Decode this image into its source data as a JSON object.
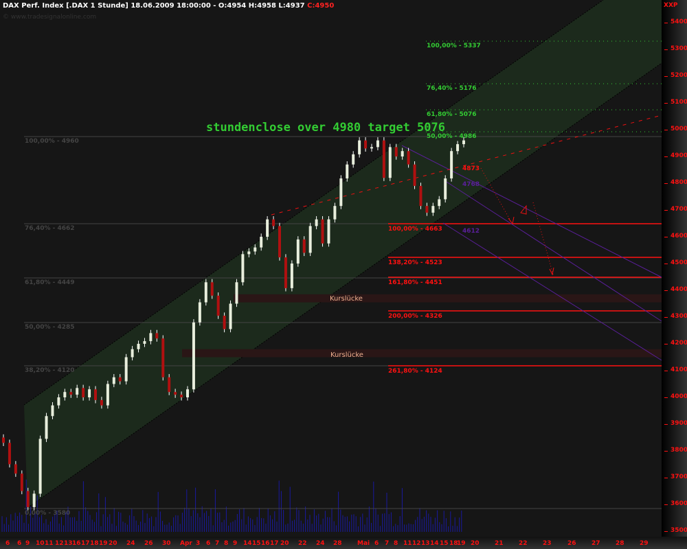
{
  "header": {
    "title": "DAX Perf. Index [.DAX  1 Stunde] 18.06.2009 18:00:00 - O:4954 H:4958 L:4937",
    "close": "C:4950",
    "watermark": "© www.tradesignalonline.com"
  },
  "annotation": "stundenclose over 4980  target 5076",
  "gap_label": "Kurslücke",
  "colors": {
    "background": "#161616",
    "channel": "#1c2a1c",
    "bull": "#e8eedc",
    "bear": "#b01010",
    "fib_up": "#33cc33",
    "fib_down": "#ff1111",
    "pitchfork": "#5a1f9a",
    "volume": "#1a1aa0"
  },
  "fib_left": [
    {
      "label": "100,00% - 4960",
      "value": 4960
    },
    {
      "label": "76,40% - 4662",
      "value": 4662
    },
    {
      "label": "61,80% - 4449",
      "value": 4449
    },
    {
      "label": "50,00% - 4285",
      "value": 4285
    },
    {
      "label": "38,20% - 4120",
      "value": 4120
    },
    {
      "label": "0,00% - 3580",
      "value": 3580
    }
  ],
  "fib_up": [
    {
      "label": "100,00% - 5337",
      "value": 5337
    },
    {
      "label": "76,40% - 5176",
      "value": 5176
    },
    {
      "label": "61,80% - 5076",
      "value": 5076
    },
    {
      "label": "50,00% - 4986",
      "value": 4986
    }
  ],
  "fib_down": [
    {
      "label": "100,00% - 4663",
      "value": 4663
    },
    {
      "label": "138,20% - 4523",
      "value": 4523
    },
    {
      "label": "161,80% - 4451",
      "value": 4451
    },
    {
      "label": "200,00% - 4326",
      "value": 4326
    },
    {
      "label": "261,80% - 4124",
      "value": 4124
    }
  ],
  "level_labels": {
    "red": "4873",
    "purple1": "4768",
    "purple2": "4612"
  },
  "chart_data": {
    "type": "candlestick",
    "title": "DAX Perf. Index 1 Stunde",
    "yaxis_unit": "XXP",
    "ylim": [
      3500,
      5400
    ],
    "yticks": [
      5400,
      5300,
      5200,
      5100,
      5000,
      4900,
      4800,
      4700,
      4600,
      4500,
      4400,
      4300,
      4200,
      4100,
      4000,
      3900,
      3800,
      3700,
      3600,
      3500
    ],
    "xticks": [
      "6",
      "6",
      "9",
      "10",
      "11",
      "12",
      "13",
      "16",
      "17",
      "18",
      "19",
      "20",
      "24",
      "26",
      "30",
      "Apr",
      "3",
      "6",
      "7",
      "8",
      "9",
      "14",
      "15",
      "16",
      "17",
      "20",
      "22",
      "24",
      "28",
      "Mai",
      "6",
      "7",
      "8",
      "11",
      "12",
      "13",
      "14",
      "15",
      "18",
      "19",
      "20",
      "21",
      "22",
      "23",
      "26",
      "27",
      "28",
      "29"
    ],
    "closes": [
      3830,
      3750,
      3715,
      3650,
      3590,
      3640,
      3845,
      3930,
      3970,
      4000,
      4020,
      4010,
      4035,
      4000,
      4030,
      3990,
      3970,
      4050,
      4075,
      4060,
      4150,
      4180,
      4200,
      4210,
      4240,
      4220,
      4075,
      4020,
      4010,
      4000,
      4030,
      4280,
      4355,
      4430,
      4380,
      4305,
      4255,
      4350,
      4430,
      4535,
      4545,
      4560,
      4600,
      4665,
      4640,
      4523,
      4408,
      4500,
      4590,
      4540,
      4640,
      4665,
      4575,
      4665,
      4715,
      4818,
      4870,
      4908,
      4960,
      4930,
      4935,
      4960,
      4820,
      4935,
      4900,
      4920,
      4870,
      4790,
      4715,
      4690,
      4715,
      4740,
      4818,
      4920,
      4946,
      4960
    ],
    "gaps": [
      [
        4355,
        4385
      ],
      [
        4150,
        4180
      ]
    ]
  }
}
